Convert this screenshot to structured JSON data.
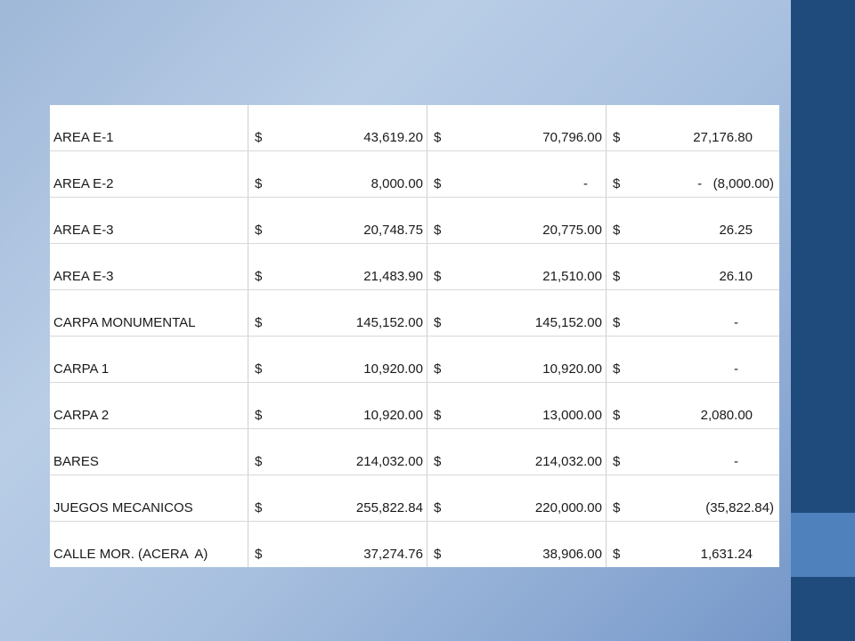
{
  "table": {
    "rows": [
      {
        "name": "AREA E-1",
        "c1": "43,619.20",
        "c2": "70,796.00",
        "c3": "27,176.80"
      },
      {
        "name": "AREA E-2",
        "c1": "8,000.00",
        "c2": "-",
        "c3": "-   (8,000.00)"
      },
      {
        "name": "AREA E-3",
        "c1": "20,748.75",
        "c2": "20,775.00",
        "c3": "26.25"
      },
      {
        "name": "AREA E-3",
        "c1": "21,483.90",
        "c2": "21,510.00",
        "c3": "26.10"
      },
      {
        "name": "CARPA MONUMENTAL",
        "c1": "145,152.00",
        "c2": "145,152.00",
        "c3": "-"
      },
      {
        "name": "CARPA 1",
        "c1": "10,920.00",
        "c2": "10,920.00",
        "c3": "-"
      },
      {
        "name": "CARPA 2",
        "c1": "10,920.00",
        "c2": "13,000.00",
        "c3": "2,080.00"
      },
      {
        "name": "BARES",
        "c1": "214,032.00",
        "c2": "214,032.00",
        "c3": "-"
      },
      {
        "name": "JUEGOS MECANICOS",
        "c1": "255,822.84",
        "c2": "220,000.00",
        "c3": "(35,822.84)"
      },
      {
        "name": "CALLE MOR. (ACERA  A)",
        "c1": "37,274.76",
        "c2": "38,906.00",
        "c3": "1,631.24"
      }
    ],
    "currency_symbol": "$"
  },
  "colors": {
    "right_bar": "#1f4a7c",
    "right_accent": "#4f81bd"
  }
}
